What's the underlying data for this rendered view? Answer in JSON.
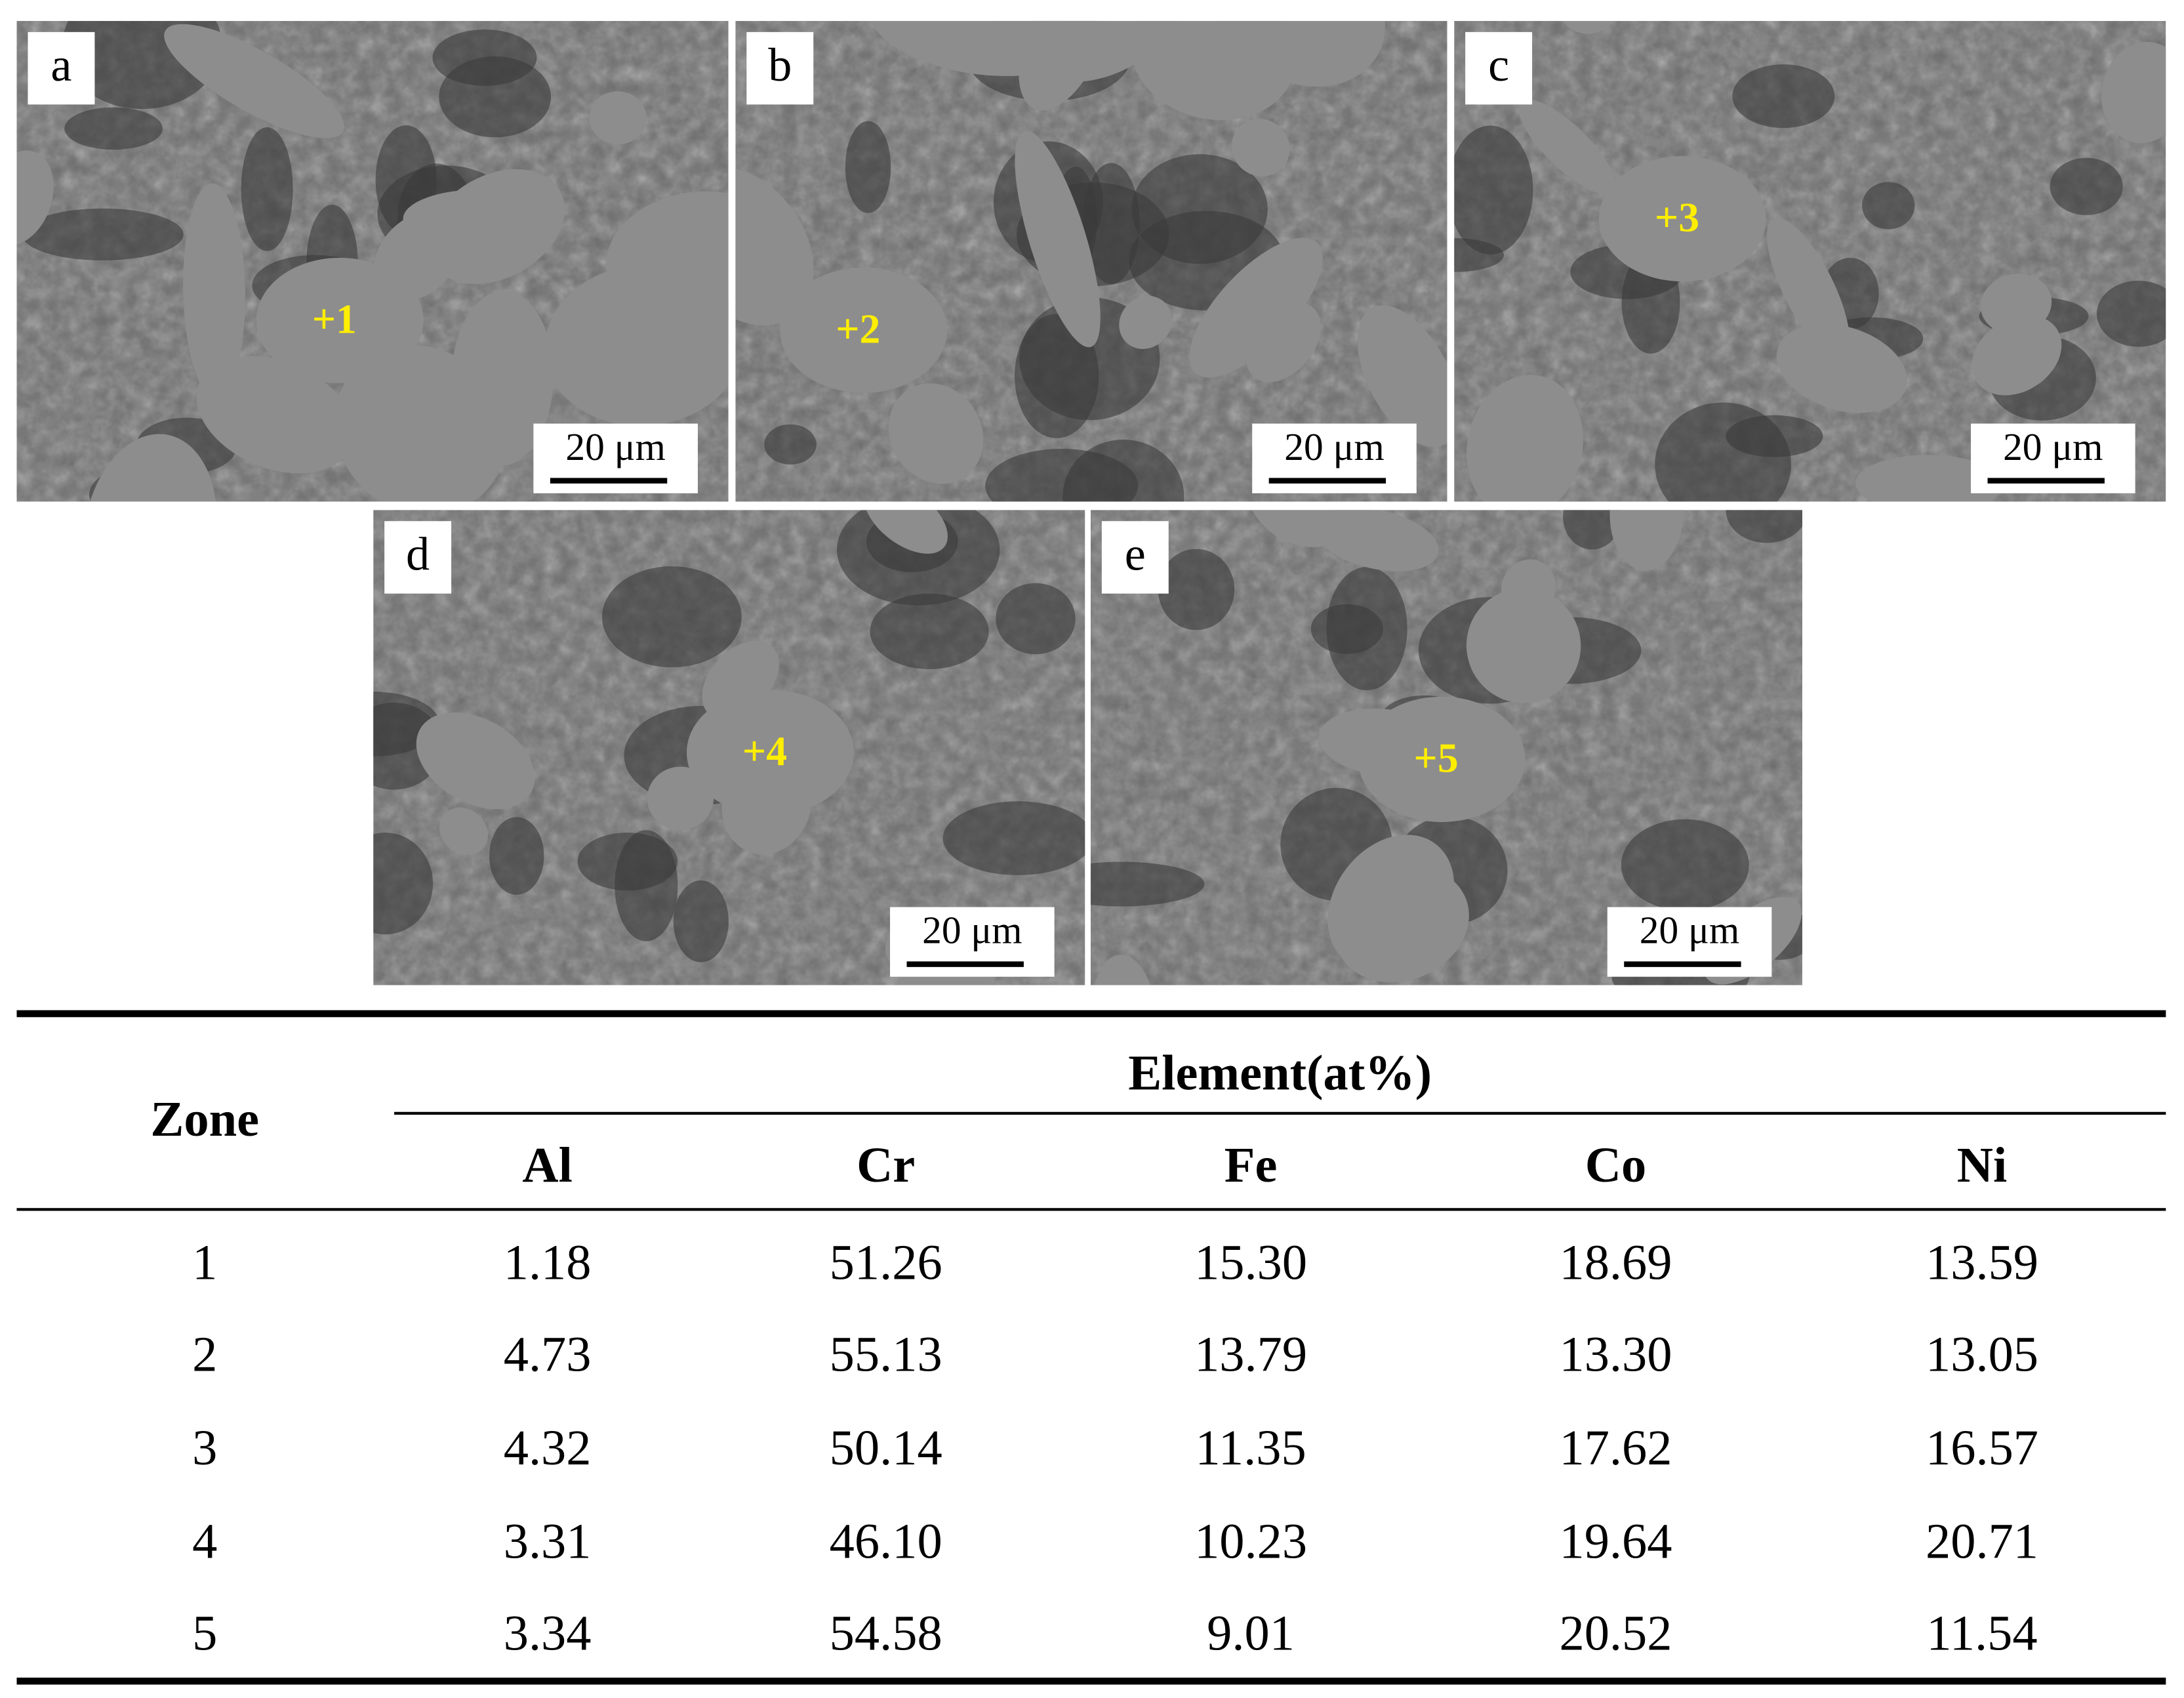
{
  "panels": [
    {
      "label": "a",
      "marker": "+1",
      "scale_bar": "20 μm"
    },
    {
      "label": "b",
      "marker": "+2",
      "scale_bar": "20 μm"
    },
    {
      "label": "c",
      "marker": "+3",
      "scale_bar": "20 μm"
    },
    {
      "label": "d",
      "marker": "+4",
      "scale_bar": "20 μm"
    },
    {
      "label": "e",
      "marker": "+5",
      "scale_bar": "20 μm"
    }
  ],
  "table": {
    "zone_header": "Zone",
    "group_header": "Element(at%)",
    "columns": [
      "Al",
      "Cr",
      "Fe",
      "Co",
      "Ni"
    ],
    "rows": [
      [
        "1",
        "1.18",
        "51.26",
        "15.30",
        "18.69",
        "13.59"
      ],
      [
        "2",
        "4.73",
        "55.13",
        "13.79",
        "13.30",
        "13.05"
      ],
      [
        "3",
        "4.32",
        "50.14",
        "11.35",
        "17.62",
        "16.57"
      ],
      [
        "4",
        "3.31",
        "46.10",
        "10.23",
        "19.64",
        "20.71"
      ],
      [
        "5",
        "3.34",
        "54.58",
        "9.01",
        "20.52",
        "11.54"
      ]
    ]
  }
}
